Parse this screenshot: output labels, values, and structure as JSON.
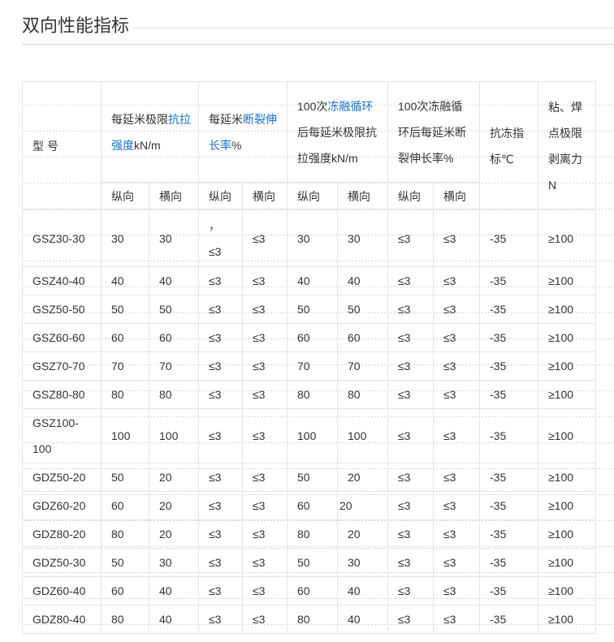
{
  "title": "双向性能指标",
  "colors": {
    "link": "#1a6fc4",
    "border": "#e4e4e4",
    "text": "#333333"
  },
  "header": {
    "model": "型 号",
    "groups": [
      {
        "parts": [
          {
            "text": "每延米极限",
            "blue": false
          },
          {
            "text": "抗拉强度",
            "blue": true
          },
          {
            "text": "kN/m",
            "blue": false
          }
        ]
      },
      {
        "parts": [
          {
            "text": "每延米",
            "blue": false
          },
          {
            "text": "断裂伸长率",
            "blue": true
          },
          {
            "text": "%",
            "blue": false
          }
        ]
      },
      {
        "parts": [
          {
            "text": "100次",
            "blue": false
          },
          {
            "text": "冻融循环",
            "blue": true
          },
          {
            "text": "后每延米极限抗拉强度kN/m",
            "blue": false
          }
        ]
      },
      {
        "parts": [
          {
            "text": "100次冻融循环后每延米断裂伸长率%",
            "blue": false
          }
        ]
      }
    ],
    "freeze": "抗冻指标℃",
    "peel": "粘、焊点极限剥离力N",
    "sub": [
      "纵向",
      "横向",
      "纵向",
      "横向",
      "纵向",
      "横向",
      "纵向",
      "横向"
    ]
  },
  "rows": [
    [
      "GSZ30-30",
      "30",
      "30",
      "，\n≤3",
      "≤3",
      "30",
      "30",
      "≤3",
      "≤3",
      "-35",
      "≥100"
    ],
    [
      "GSZ40-40",
      "40",
      "40",
      "≤3",
      "≤3",
      "40",
      "40",
      "≤3",
      "≤3",
      "-35",
      "≥100"
    ],
    [
      "GSZ50-50",
      "50",
      "50",
      "≤3",
      "≤3",
      "50",
      "50",
      "≤3",
      "≤3",
      "-35",
      "≥100"
    ],
    [
      "GSZ60-60",
      "60",
      "60",
      "≤3",
      "≤3",
      "60",
      "60",
      "≤3",
      "≤3",
      "-35",
      "≥100"
    ],
    [
      "GSZ70-70",
      "70",
      "70",
      "≤3",
      "≤3",
      "70",
      "70",
      "≤3",
      "≤3",
      "-35",
      "≥100"
    ],
    [
      "GSZ80-80",
      "80",
      "80",
      "≤3",
      "≤3",
      "80",
      "80",
      "≤3",
      "≤3",
      "-35",
      "≥100"
    ],
    [
      "GSZ100-100",
      "100",
      "100",
      "≤3",
      "≤3",
      "100",
      "100",
      "≤3",
      "≤3",
      "-35",
      "≥100"
    ],
    [
      "GDZ50-20",
      "50",
      "20",
      "≤3",
      "≤3",
      "50",
      "20",
      "≤3",
      "≤3",
      "-35",
      "≥100"
    ],
    [
      "GDZ60-20",
      "60",
      "20",
      "≤3",
      "≤3",
      "60",
      "20",
      "≤3",
      "≤3",
      "-35",
      "≥100"
    ],
    [
      "GDZ80-20",
      "80",
      "20",
      "≤3",
      "≤3",
      "80",
      "20",
      "≤3",
      "≤3",
      "-35",
      "≥100"
    ],
    [
      "GDZ50-30",
      "50",
      "30",
      "≤3",
      "≤3",
      "50",
      "30",
      "≤3",
      "≤3",
      "-35",
      "≥100"
    ],
    [
      "GDZ60-40",
      "60",
      "40",
      "≤3",
      "≤3",
      "60",
      "40",
      "≤3",
      "≤3",
      "-35",
      "≥100"
    ],
    [
      "GDZ80-40",
      "80",
      "40",
      "≤3",
      "≤3",
      "80",
      "40",
      "≤3",
      "≤3",
      "-35",
      "≥100"
    ]
  ]
}
